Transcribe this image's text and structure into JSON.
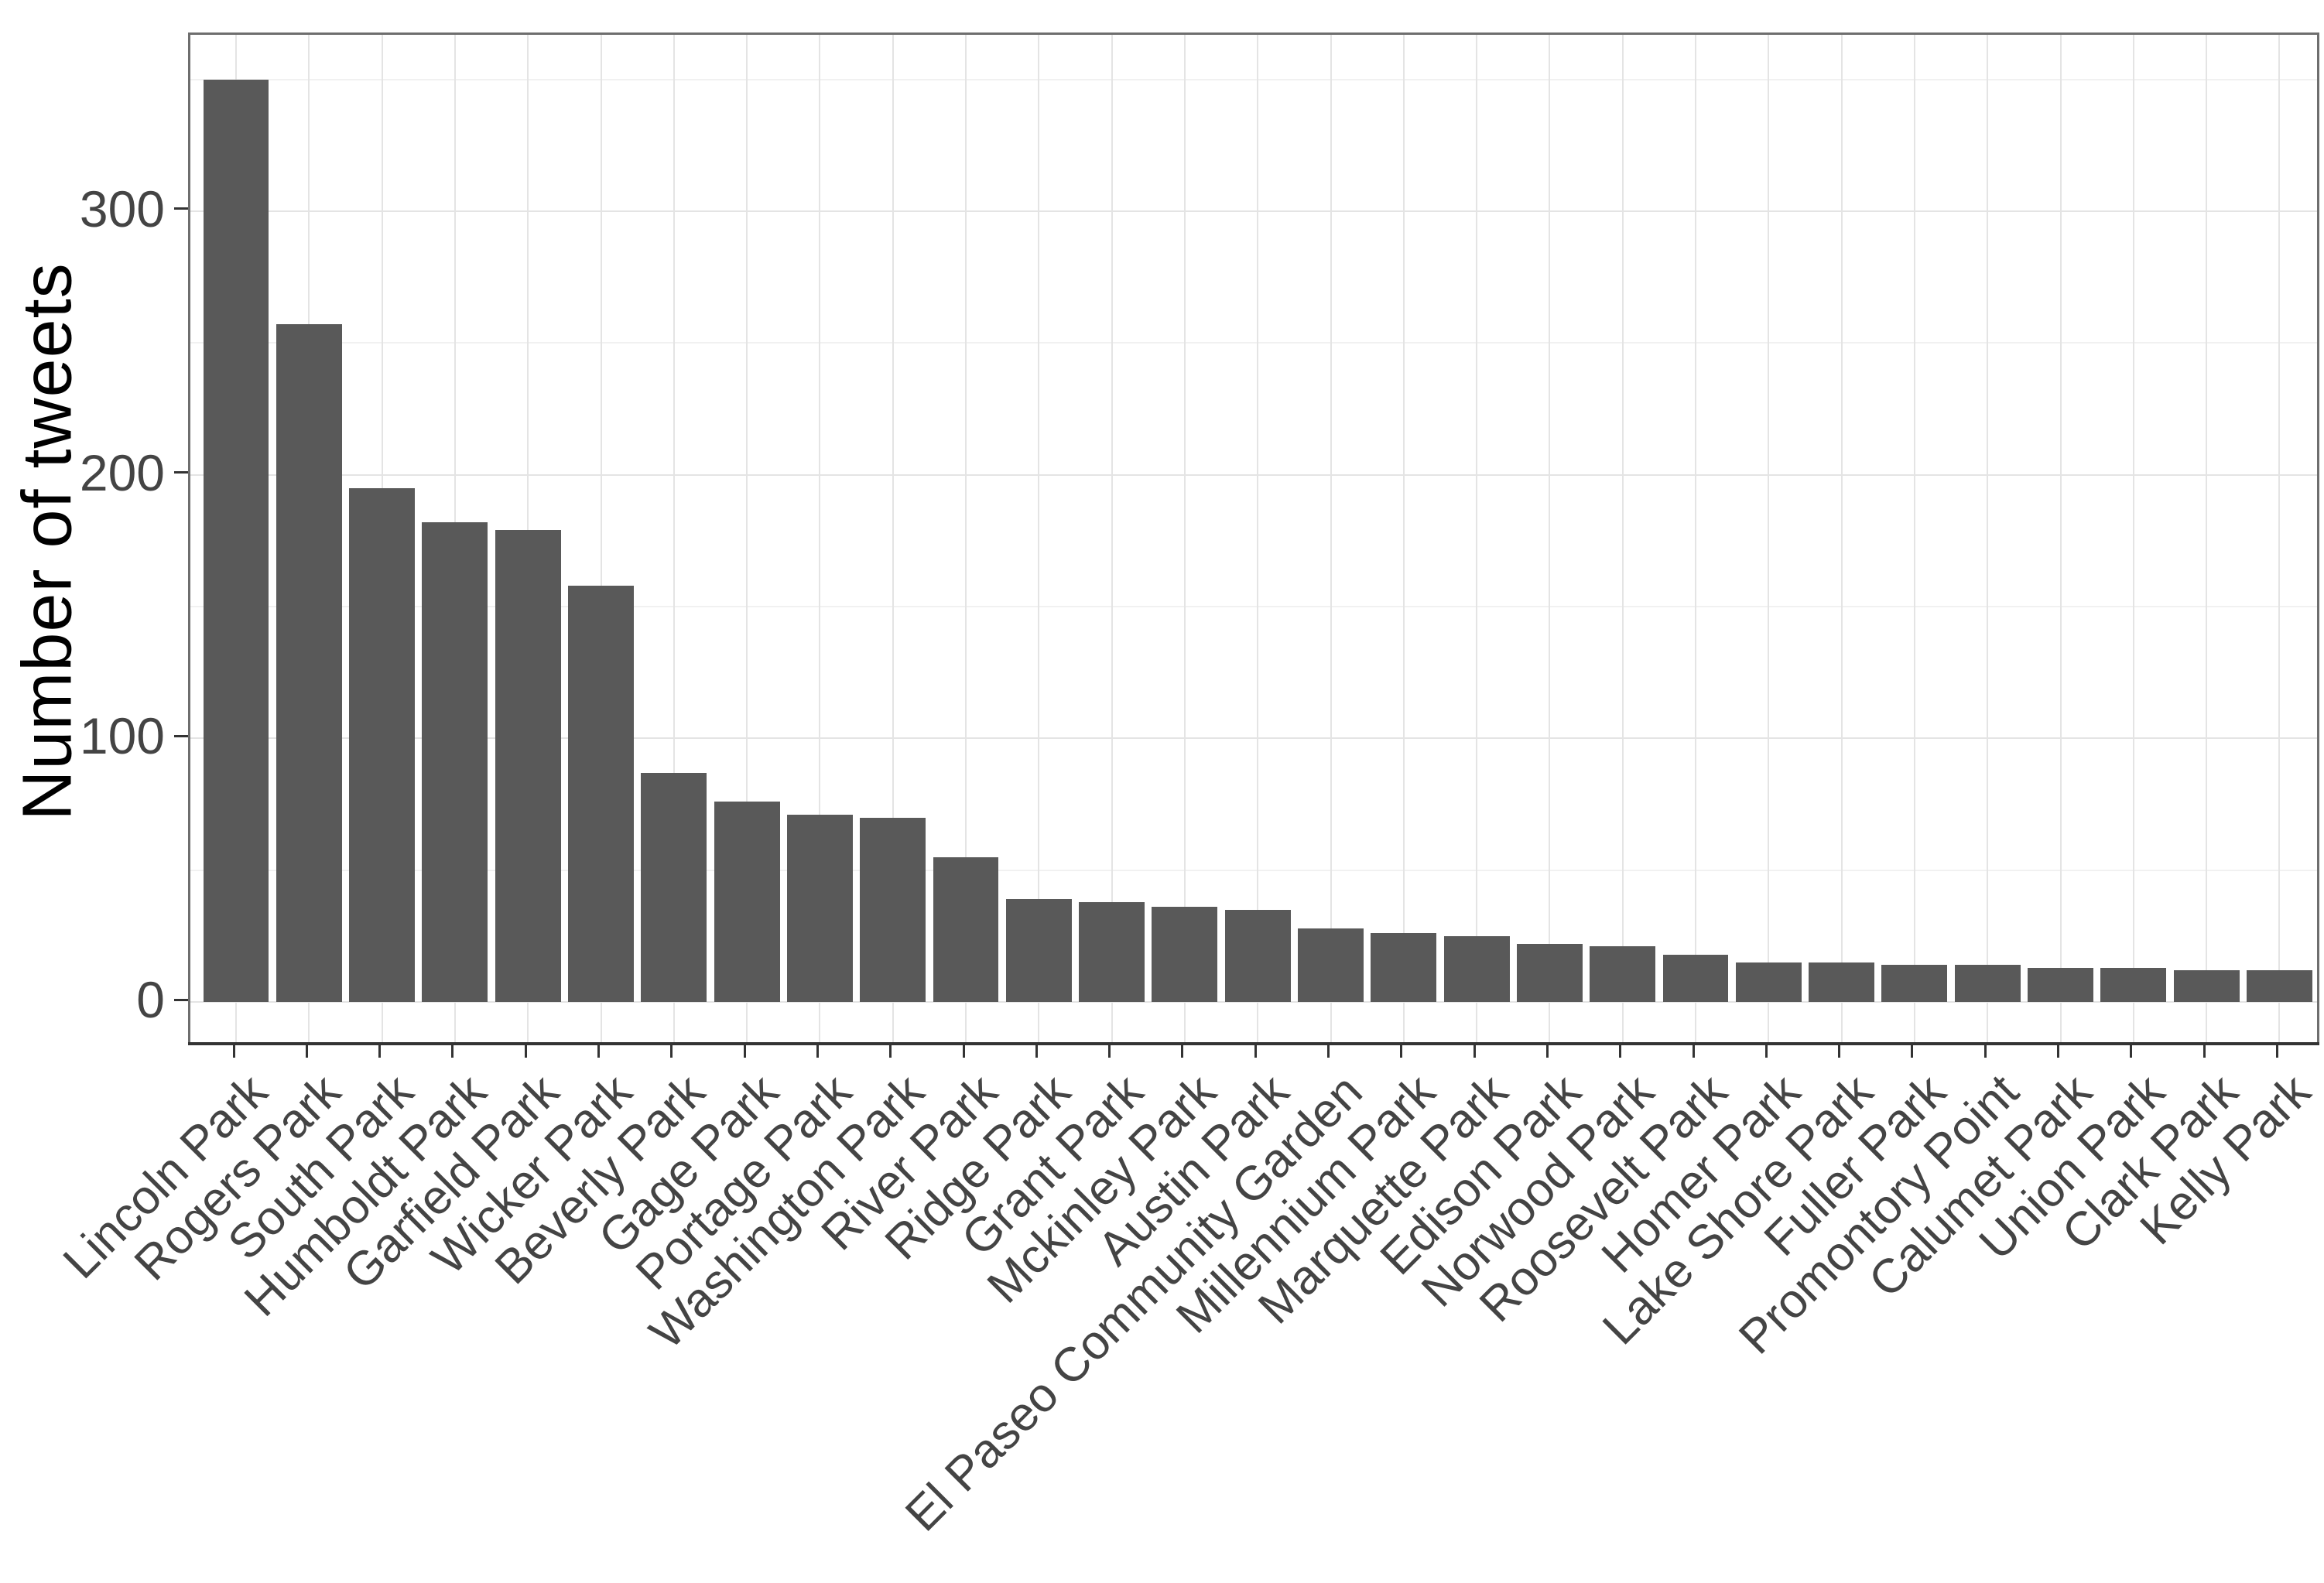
{
  "chart_data": {
    "type": "bar",
    "title": "",
    "xlabel": "",
    "ylabel": "Number of tweets",
    "categories": [
      "Lincoln Park",
      "Rogers Park",
      "South Park",
      "Humboldt Park",
      "Garfield Park",
      "Wicker Park",
      "Beverly Park",
      "Gage Park",
      "Portage Park",
      "Washington Park",
      "River Park",
      "Ridge Park",
      "Grant Park",
      "Mckinley Park",
      "Austin Park",
      "El Paseo Community Garden",
      "Millennium Park",
      "Marquette Park",
      "Edison Park",
      "Norwood Park",
      "Roosevelt Park",
      "Homer Park",
      "Lake Shore Park",
      "Fuller Park",
      "Promontory Point",
      "Calumet Park",
      "Union Park",
      "Clark Park",
      "Kelly Park"
    ],
    "values": [
      350,
      257,
      195,
      182,
      179,
      158,
      87,
      76,
      71,
      70,
      55,
      39,
      38,
      36,
      35,
      28,
      26,
      25,
      22,
      21,
      18,
      15,
      15,
      14,
      14,
      13,
      13,
      12,
      12
    ],
    "yticks": [
      0,
      100,
      200,
      300
    ],
    "yticks_minor": [
      50,
      150,
      250,
      350
    ],
    "ylim": [
      -17.5,
      367.5
    ],
    "x_label_angle_deg": 45,
    "grid": "on",
    "legend": "none",
    "colors": {
      "bar_fill": "#595959",
      "grid_major": "#e4e4e4",
      "grid_minor": "#f1f1f1",
      "panel_border": "#6e6e6e",
      "axis_line": "#333333",
      "tick_mark": "#333333",
      "tick_label": "#444444",
      "axis_title": "#000000",
      "background": "#ffffff"
    }
  }
}
